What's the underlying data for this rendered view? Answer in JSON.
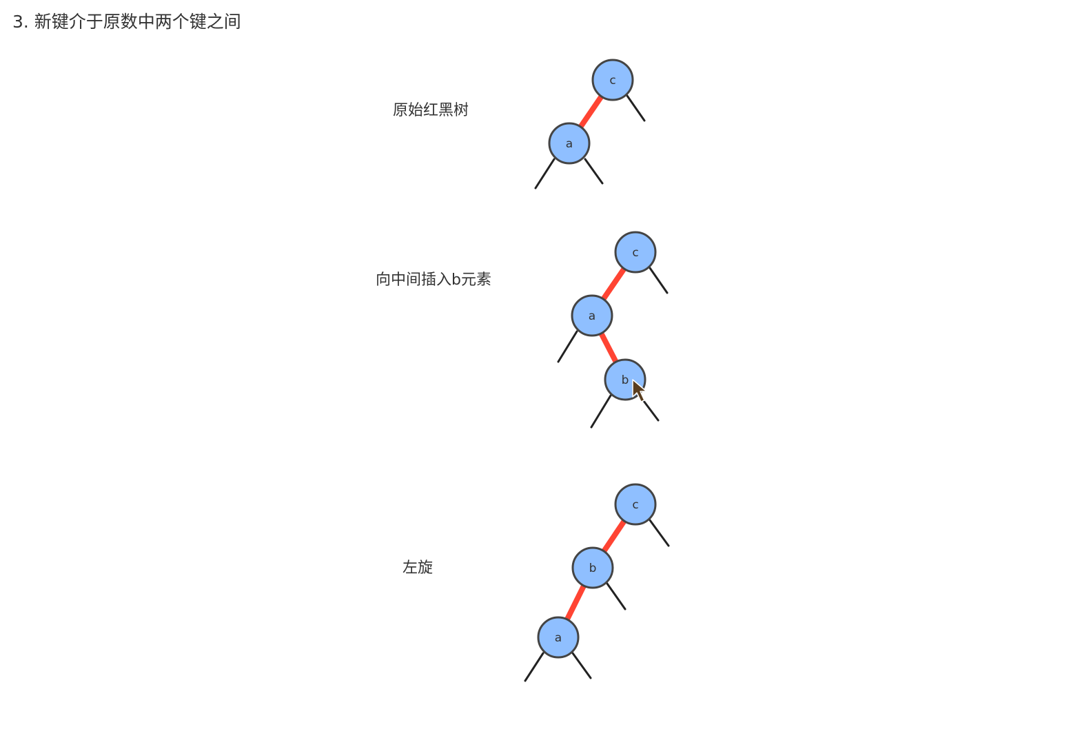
{
  "heading": "3. 新键介于原数中两个键之间",
  "colors": {
    "node_fill": "#8fbfff",
    "node_stroke": "#444444",
    "red_link": "#ff4433",
    "black_link": "#222222"
  },
  "panels": [
    {
      "label": "原始红黑树",
      "nodes": [
        {
          "id": "c",
          "label": "c"
        },
        {
          "id": "a",
          "label": "a"
        }
      ],
      "red_links": [
        [
          "c",
          "a"
        ]
      ]
    },
    {
      "label": "向中间插入b元素",
      "nodes": [
        {
          "id": "c",
          "label": "c"
        },
        {
          "id": "a",
          "label": "a"
        },
        {
          "id": "b",
          "label": "b"
        }
      ],
      "red_links": [
        [
          "c",
          "a"
        ],
        [
          "a",
          "b"
        ]
      ]
    },
    {
      "label": "左旋",
      "nodes": [
        {
          "id": "c",
          "label": "c"
        },
        {
          "id": "b",
          "label": "b"
        },
        {
          "id": "a",
          "label": "a"
        }
      ],
      "red_links": [
        [
          "c",
          "b"
        ],
        [
          "b",
          "a"
        ]
      ]
    }
  ]
}
